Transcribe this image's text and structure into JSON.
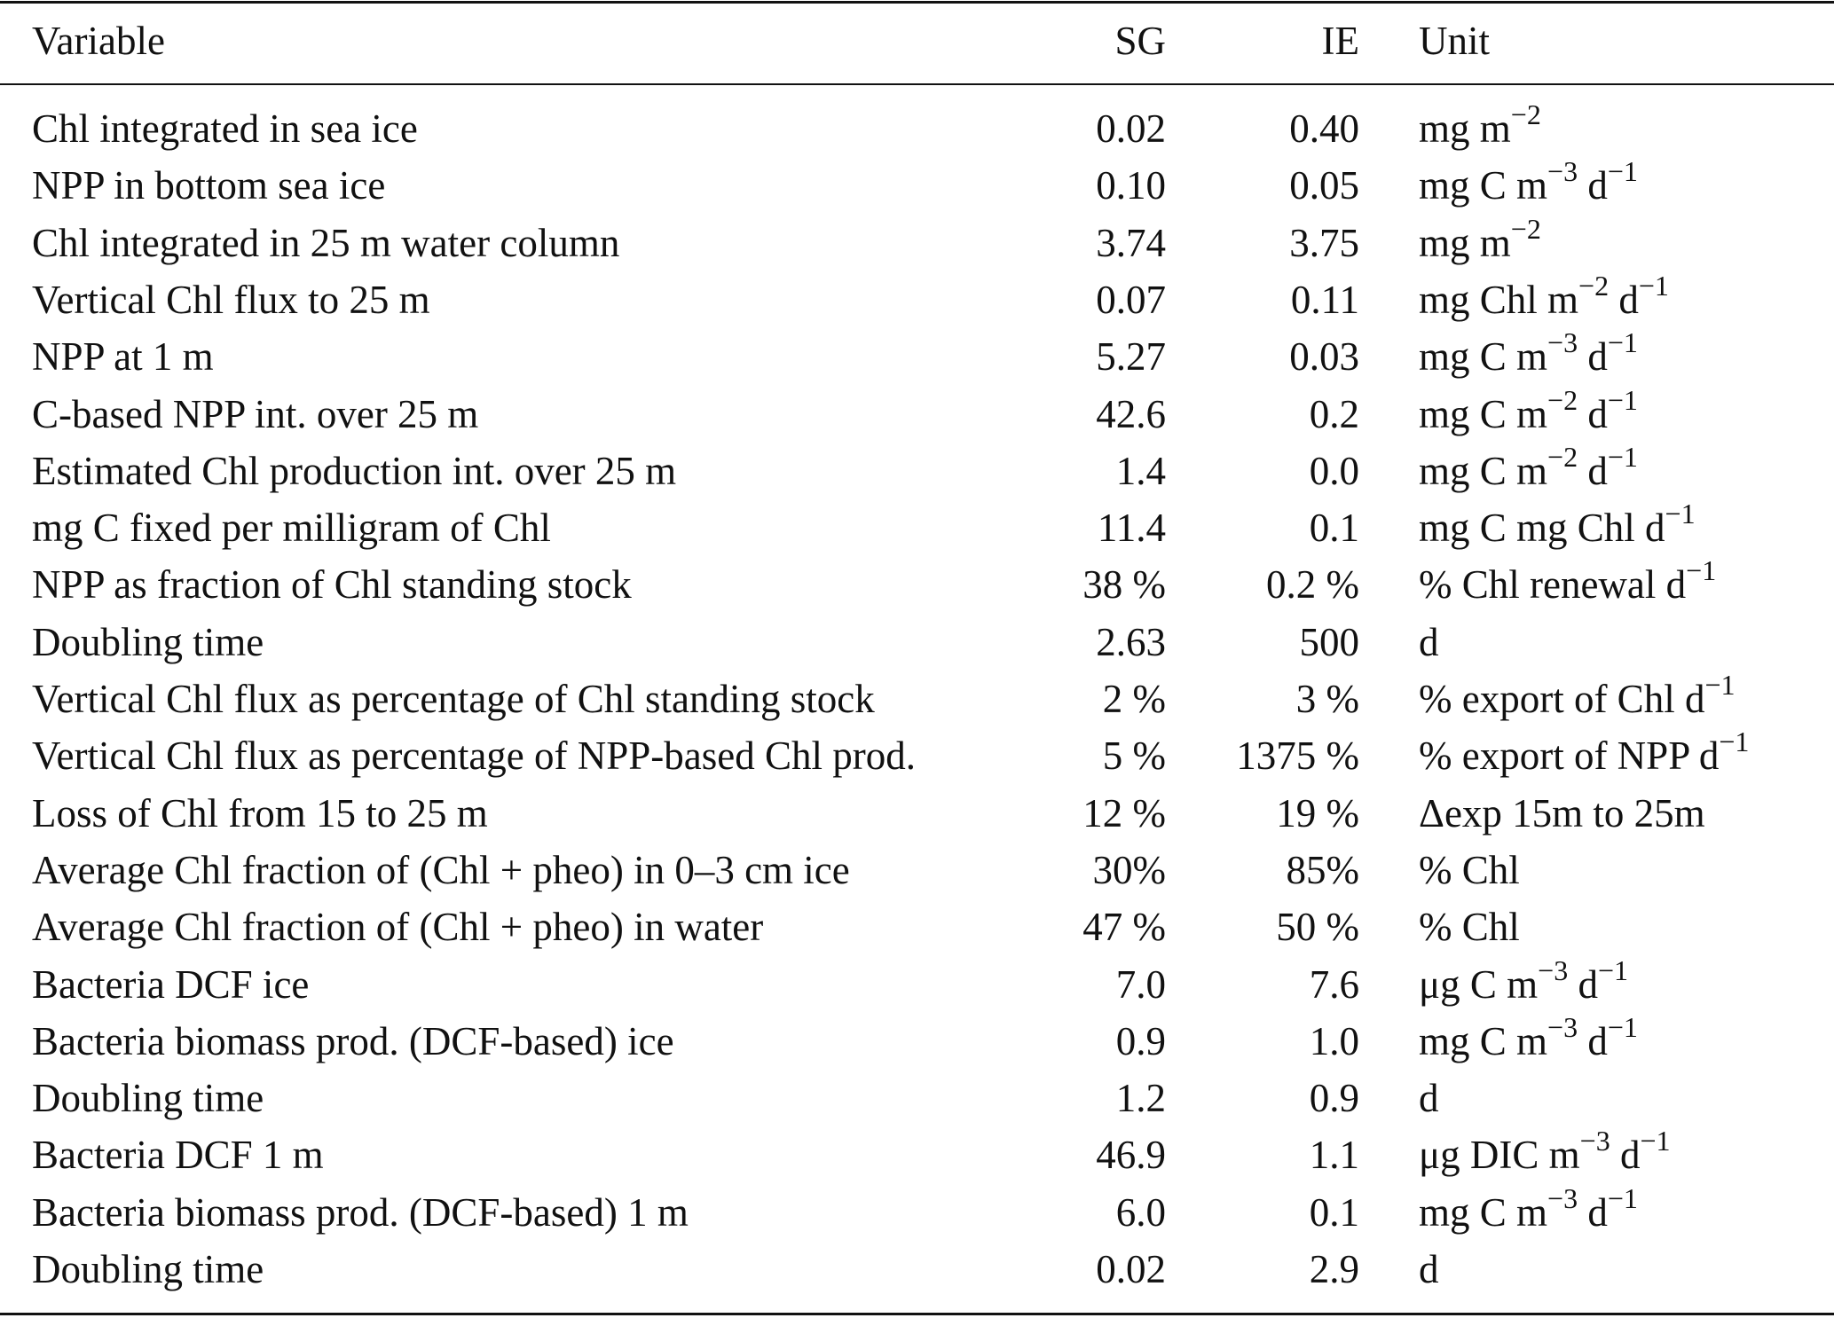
{
  "table": {
    "header": [
      "Variable",
      "SG",
      "IE",
      "Unit"
    ],
    "rows": [
      [
        "Chl integrated in sea ice",
        "0.02",
        "0.40",
        [
          "mg m",
          "−2"
        ]
      ],
      [
        "NPP in bottom sea ice",
        "0.10",
        "0.05",
        [
          "mg C m",
          "−3",
          " d",
          "−1"
        ]
      ],
      [
        "Chl integrated in 25 m water column",
        "3.74",
        "3.75",
        [
          "mg m",
          "−2"
        ]
      ],
      [
        "Vertical Chl flux to 25 m",
        "0.07",
        "0.11",
        [
          "mg Chl m",
          "−2",
          " d",
          "−1"
        ]
      ],
      [
        "NPP at 1 m",
        "5.27",
        "0.03",
        [
          "mg C m",
          "−3",
          " d",
          "−1"
        ]
      ],
      [
        "C-based NPP int. over 25 m",
        "42.6",
        "0.2",
        [
          "mg C m",
          "−2",
          " d",
          "−1"
        ]
      ],
      [
        "Estimated Chl production int. over 25 m",
        "1.4",
        "0.0",
        [
          "mg C m",
          "−2",
          " d",
          "−1"
        ]
      ],
      [
        "mg C fixed per milligram of Chl",
        "11.4",
        "0.1",
        [
          "mg C mg Chl d",
          "−1"
        ]
      ],
      [
        "NPP as fraction of Chl standing stock",
        "38 %",
        "0.2 %",
        [
          "% Chl renewal d",
          "−1"
        ]
      ],
      [
        "Doubling time",
        "2.63",
        "500",
        [
          "d"
        ]
      ],
      [
        "Vertical Chl flux as percentage of Chl standing stock",
        "2 %",
        "3 %",
        [
          "% export of Chl d",
          "−1"
        ]
      ],
      [
        "Vertical Chl flux as percentage of NPP-based Chl prod.",
        "5 %",
        "1375 %",
        [
          "% export of NPP d",
          "−1"
        ]
      ],
      [
        "Loss of Chl from 15 to 25 m",
        "12 %",
        "19 %",
        [
          "Δexp 15m to 25m"
        ]
      ],
      [
        "Average Chl fraction of (Chl + pheo) in 0–3 cm ice",
        "30%",
        "85%",
        [
          "% Chl"
        ]
      ],
      [
        "Average Chl fraction of (Chl + pheo) in water",
        "47 %",
        "50 %",
        [
          "% Chl"
        ]
      ],
      [
        "Bacteria DCF ice",
        "7.0",
        "7.6",
        [
          "μg C m",
          "−3",
          " d",
          "−1"
        ]
      ],
      [
        "Bacteria biomass prod. (DCF-based) ice",
        "0.9",
        "1.0",
        [
          "mg C m",
          "−3",
          " d",
          "−1"
        ]
      ],
      [
        "Doubling time",
        "1.2",
        "0.9",
        [
          "d"
        ]
      ],
      [
        "Bacteria DCF 1 m",
        "46.9",
        "1.1",
        [
          "μg DIC m",
          "−3",
          " d",
          "−1"
        ]
      ],
      [
        "Bacteria biomass prod. (DCF-based) 1 m",
        "6.0",
        "0.1",
        [
          "mg C m",
          "−3",
          " d",
          "−1"
        ]
      ],
      [
        "Doubling time",
        "0.02",
        "2.9",
        [
          "d"
        ]
      ]
    ]
  }
}
